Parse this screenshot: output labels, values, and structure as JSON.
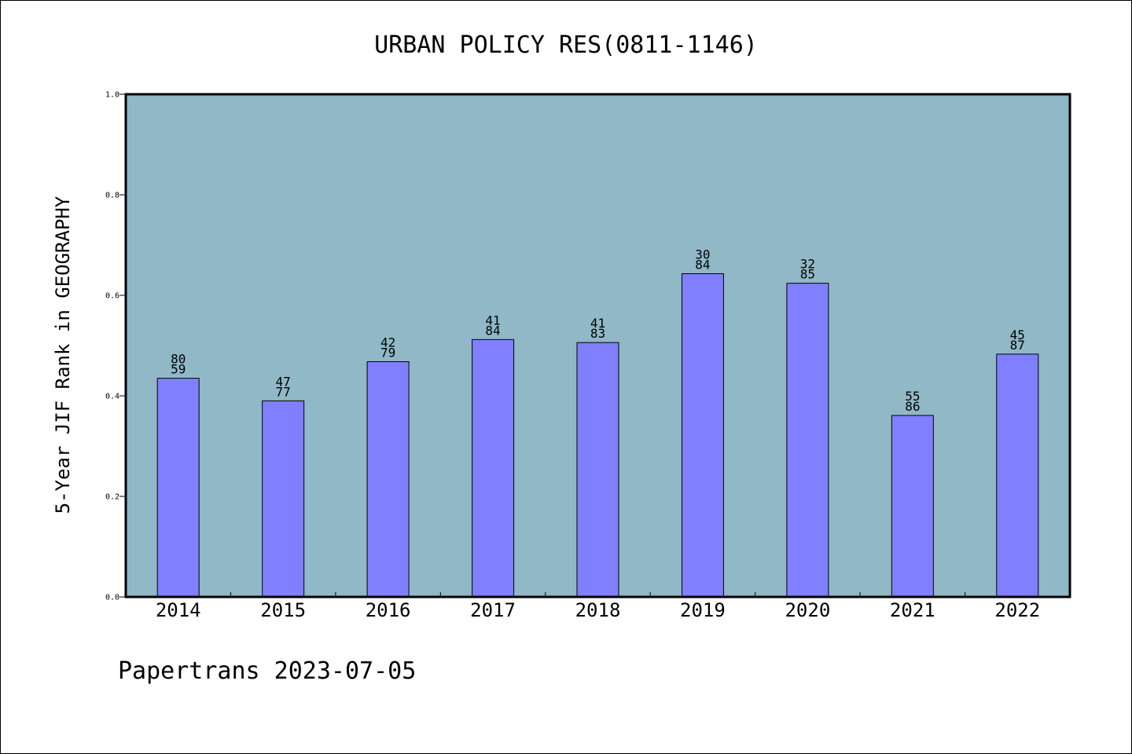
{
  "chart_data": {
    "type": "bar",
    "title": "URBAN POLICY RES(0811-1146)",
    "xlabel": "",
    "ylabel": "5-Year JIF Rank in GEOGRAPHY",
    "ylim": [
      0,
      1.0
    ],
    "yticks": [
      "0.0",
      "0.2",
      "0.4",
      "0.6",
      "0.8",
      "1.0"
    ],
    "categories": [
      "2014",
      "2015",
      "2016",
      "2017",
      "2018",
      "2019",
      "2020",
      "2021",
      "2022"
    ],
    "values": [
      0.435,
      0.39,
      0.468,
      0.512,
      0.506,
      0.643,
      0.624,
      0.361,
      0.483
    ],
    "bar_labels": [
      [
        "80",
        "59"
      ],
      [
        "47",
        "77"
      ],
      [
        "42",
        "79"
      ],
      [
        "41",
        "84"
      ],
      [
        "41",
        "83"
      ],
      [
        "30",
        "84"
      ],
      [
        "32",
        "85"
      ],
      [
        "55",
        "86"
      ],
      [
        "45",
        "87"
      ]
    ],
    "grid": false,
    "colors": {
      "plot_background": "#90b8c6",
      "bar": "#8080ff",
      "bar_edge": "#000000"
    }
  },
  "footer": "Papertrans 2023-07-05"
}
